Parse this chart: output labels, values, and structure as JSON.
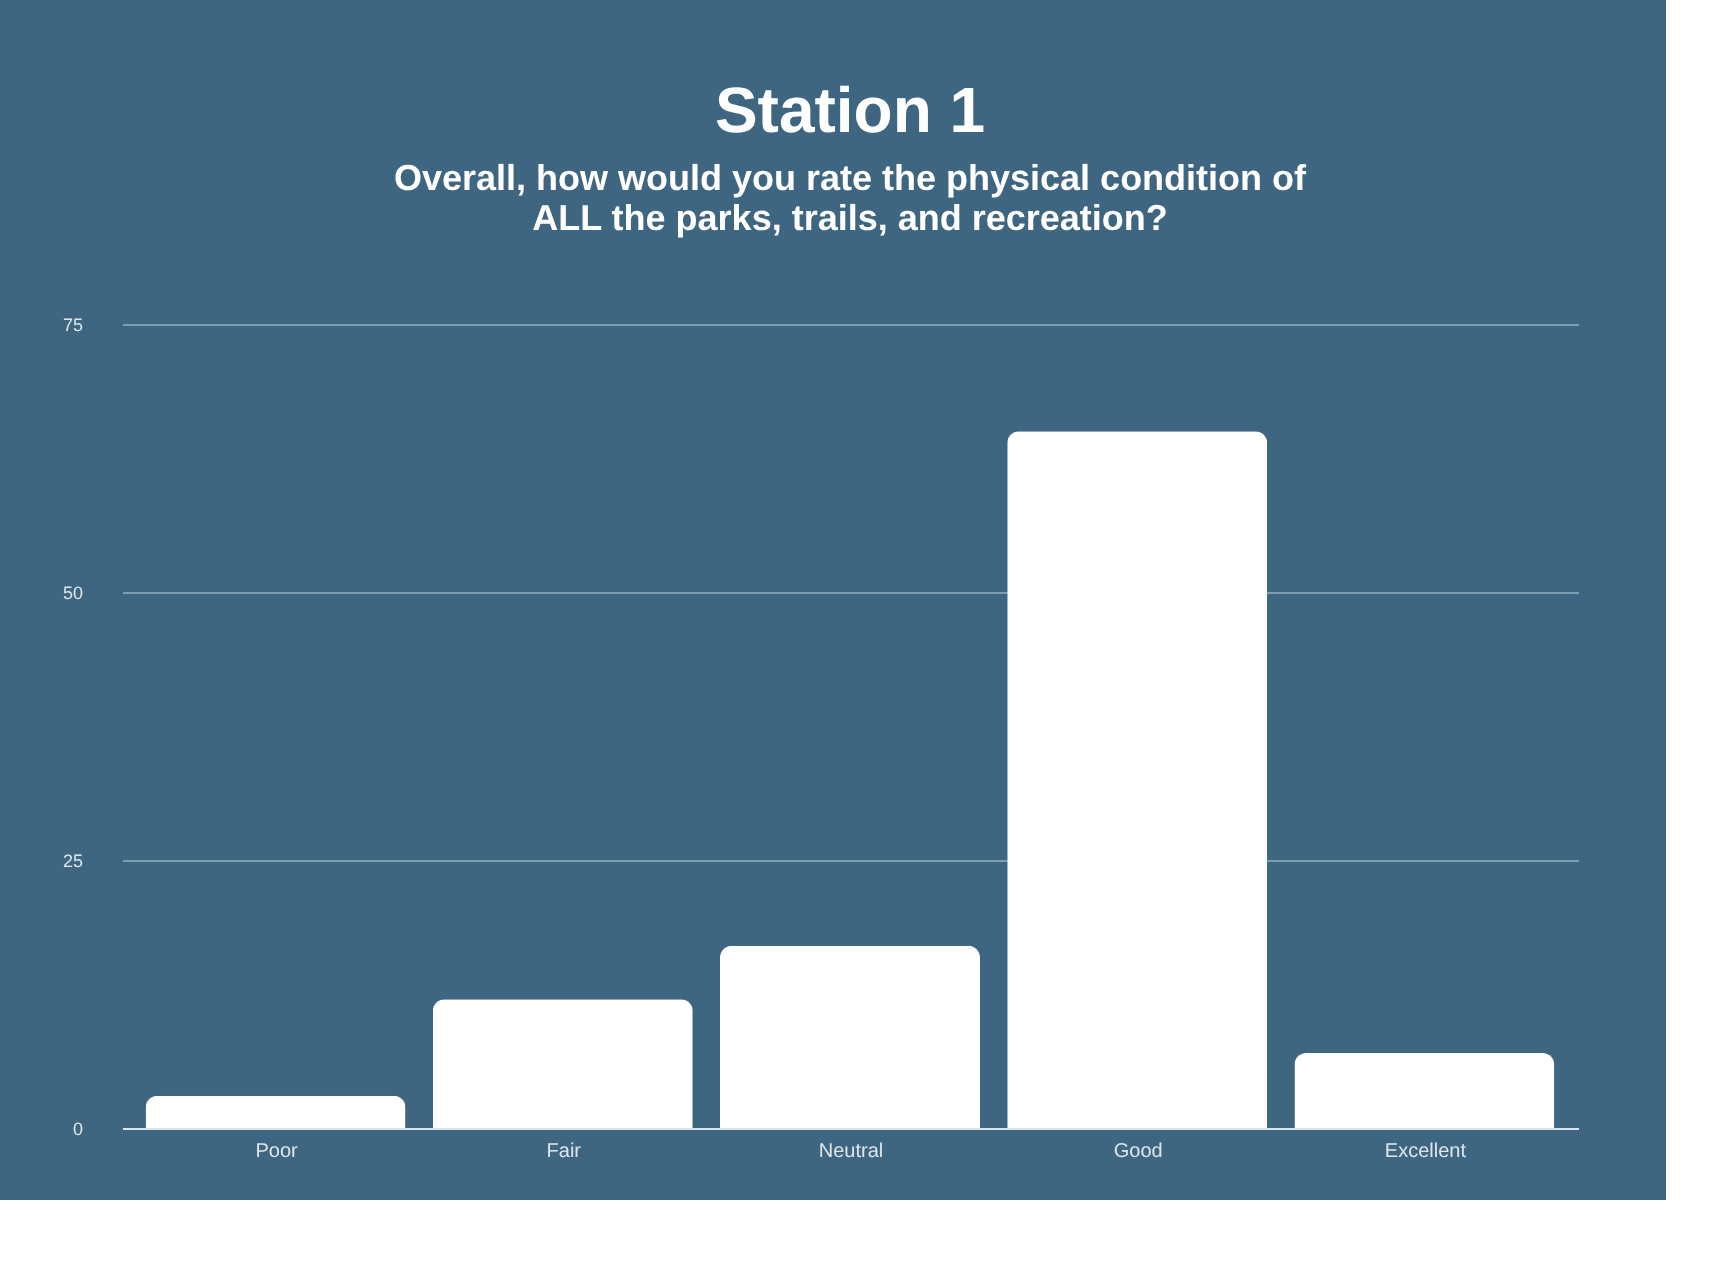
{
  "chart_data": {
    "type": "bar",
    "title": "Station 1",
    "subtitle": "Overall, how would you rate the physical condition of ALL the parks, trails, and recreation?",
    "categories": [
      "Poor",
      "Fair",
      "Neutral",
      "Good",
      "Excellent"
    ],
    "values": [
      3,
      12,
      17,
      65,
      7
    ],
    "color": "#ffffff",
    "ylim": [
      0,
      75
    ],
    "yticks": [
      0,
      25,
      50,
      75
    ],
    "grid": "y"
  }
}
